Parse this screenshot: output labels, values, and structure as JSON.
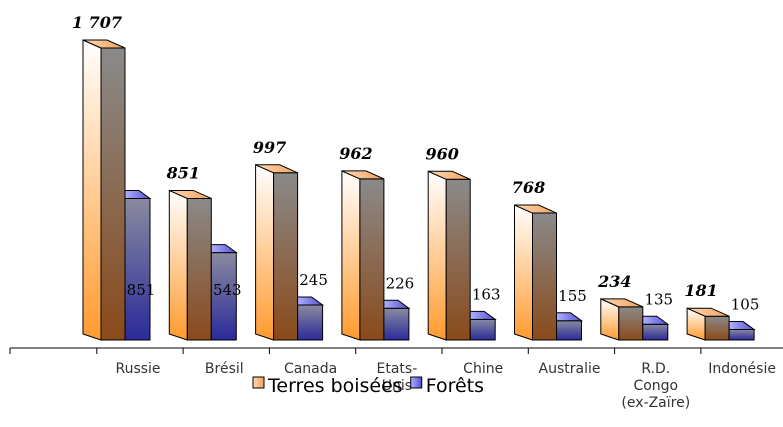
{
  "chart_data": {
    "type": "bar3d",
    "categories": [
      "Russie",
      "Brésil",
      "Canada",
      "Etats-\nUnis",
      "Chine",
      "Australie",
      "R.D.\nCongo\n(ex-Zaïre)",
      "Indonésie"
    ],
    "series": [
      {
        "name": "Terres boisées",
        "color": "#ff9a2e",
        "values": [
          1707,
          851,
          997,
          962,
          960,
          768,
          234,
          181
        ],
        "value_labels": [
          "1 707",
          "851",
          "997",
          "962",
          "960",
          "768",
          "234",
          "181"
        ]
      },
      {
        "name": "Forêts",
        "color": "#2a2a9a",
        "values": [
          851,
          543,
          245,
          226,
          163,
          155,
          135,
          105
        ]
      }
    ],
    "legend": "bottom"
  }
}
